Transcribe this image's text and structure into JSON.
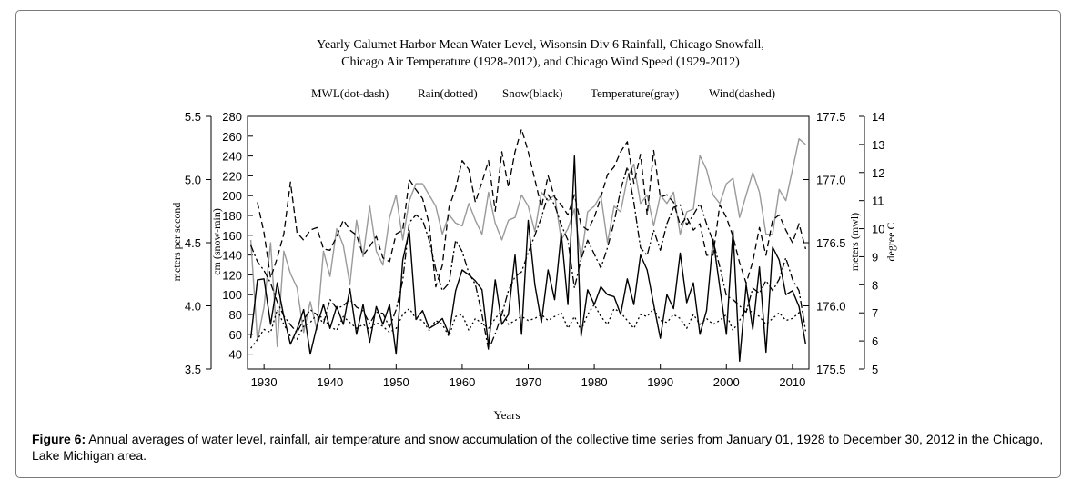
{
  "chart_data": {
    "type": "line",
    "title_line1": "Yearly Calumet Harbor Mean Water Level, Wisonsin Div 6 Rainfall, Chicago Snowfall,",
    "title_line2": "Chicago Air Temperature (1928-2012), and Chicago Wind Speed (1929-2012)",
    "legend": [
      "MWL(dot-dash)",
      "Rain(dotted)",
      "Snow(black)",
      "Temperature(gray)",
      "Wind(dashed)"
    ],
    "xlabel": "Years",
    "x_ticks": [
      "1930",
      "1940",
      "1950",
      "1960",
      "1970",
      "1980",
      "1990",
      "2000",
      "2010"
    ],
    "xlim": [
      1927.5,
      2012.5
    ],
    "axes": {
      "wind": {
        "label": "meters per second",
        "ticks": [
          "3.5",
          "4.0",
          "4.5",
          "5.0",
          "5.5"
        ],
        "lim": [
          3.5,
          5.5
        ]
      },
      "snow_rain": {
        "label": "cm (snow-rain)",
        "ticks": [
          "40",
          "60",
          "80",
          "100",
          "120",
          "140",
          "160",
          "180",
          "200",
          "220",
          "240",
          "260",
          "280"
        ],
        "lim": [
          25,
          280
        ]
      },
      "mwl": {
        "label": "meters (mwl)",
        "ticks": [
          "175.5",
          "176.0",
          "176.5",
          "177.0",
          "177.5"
        ],
        "lim": [
          175.5,
          177.5
        ]
      },
      "temp": {
        "label": "degree C",
        "ticks": [
          "5",
          "6",
          "7",
          "8",
          "9",
          "10",
          "11",
          "12",
          "13",
          "14"
        ],
        "lim": [
          5,
          14
        ]
      }
    },
    "series": [
      {
        "name": "MWL(dot-dash)",
        "axis": "mwl",
        "style": "dotdash",
        "color": "#000000",
        "start": 1928,
        "values": [
          176.48,
          176.35,
          176.28,
          176.18,
          176.03,
          175.92,
          175.85,
          175.79,
          175.89,
          175.97,
          175.93,
          175.86,
          176.05,
          175.98,
          176.0,
          176.05,
          175.99,
          175.96,
          175.86,
          175.95,
          175.94,
          175.83,
          175.97,
          176.2,
          176.66,
          176.72,
          176.68,
          176.52,
          176.29,
          176.12,
          176.18,
          176.52,
          176.43,
          176.26,
          176.17,
          175.93,
          175.65,
          175.78,
          175.93,
          176.12,
          176.23,
          176.27,
          176.42,
          176.56,
          176.7,
          176.88,
          176.8,
          176.64,
          176.52,
          176.14,
          176.37,
          176.52,
          176.41,
          176.3,
          176.46,
          176.66,
          176.92,
          177.1,
          176.82,
          176.46,
          176.4,
          176.6,
          176.44,
          176.65,
          176.78,
          176.8,
          176.64,
          176.72,
          176.81,
          176.65,
          176.51,
          176.31,
          176.08,
          176.05,
          176.0,
          175.95,
          176.14,
          176.1,
          176.2,
          176.12,
          176.21,
          176.38,
          176.21,
          176.12,
          175.8
        ]
      },
      {
        "name": "Rain(dotted)",
        "axis": "snow_rain",
        "style": "dotted",
        "color": "#000000",
        "start": 1928,
        "values": [
          46,
          55,
          65,
          62,
          85,
          70,
          58,
          55,
          68,
          72,
          80,
          76,
          68,
          64,
          78,
          72,
          66,
          70,
          65,
          72,
          68,
          62,
          66,
          80,
          86,
          76,
          74,
          64,
          74,
          70,
          58,
          78,
          80,
          64,
          76,
          71,
          66,
          76,
          84,
          70,
          74,
          78,
          74,
          76,
          80,
          74,
          78,
          82,
          66,
          78,
          64,
          80,
          90,
          78,
          70,
          86,
          82,
          74,
          66,
          80,
          78,
          86,
          74,
          72,
          80,
          76,
          66,
          80,
          70,
          76,
          70,
          74,
          80,
          64,
          74,
          86,
          82,
          78,
          70,
          76,
          82,
          74,
          76,
          82,
          80
        ]
      },
      {
        "name": "Snow(black)",
        "axis": "snow_rain",
        "style": "solid",
        "color": "#000000",
        "start": 1928,
        "values": [
          56,
          115,
          116,
          70,
          112,
          78,
          50,
          65,
          85,
          40,
          68,
          90,
          66,
          88,
          70,
          106,
          60,
          90,
          52,
          88,
          70,
          90,
          40,
          135,
          165,
          75,
          84,
          66,
          70,
          76,
          60,
          104,
          125,
          120,
          114,
          105,
          48,
          115,
          70,
          80,
          140,
          60,
          175,
          110,
          72,
          125,
          95,
          162,
          90,
          240,
          58,
          105,
          90,
          108,
          100,
          98,
          80,
          116,
          90,
          140,
          125,
          90,
          56,
          100,
          86,
          142,
          92,
          112,
          60,
          84,
          156,
          108,
          60,
          165,
          33,
          110,
          65,
          128,
          42,
          148,
          135,
          100,
          104,
          88,
          50
        ]
      },
      {
        "name": "Temperature(gray)",
        "axis": "temp",
        "style": "solid",
        "color": "#9a9a9a",
        "start": 1928,
        "values": [
          9.6,
          6.0,
          7.2,
          9.5,
          5.8,
          9.2,
          8.4,
          7.9,
          6.3,
          7.4,
          6.4,
          9.2,
          8.3,
          10.0,
          9.4,
          8.0,
          10.3,
          9.0,
          10.8,
          9.2,
          8.7,
          10.4,
          11.2,
          9.6,
          11.0,
          11.6,
          11.6,
          11.2,
          10.8,
          9.8,
          10.5,
          10.2,
          10.1,
          10.9,
          10.3,
          9.8,
          11.3,
          10.2,
          9.6,
          10.3,
          10.4,
          11.2,
          10.8,
          9.9,
          11.3,
          11.0,
          11.2,
          9.6,
          10.0,
          10.7,
          8.9,
          10.6,
          10.8,
          11.2,
          9.5,
          10.8,
          10.6,
          11.8,
          12.3,
          10.9,
          11.2,
          10.1,
          11.2,
          10.9,
          11.3,
          9.8,
          10.6,
          10.7,
          12.6,
          12.1,
          11.2,
          10.9,
          11.6,
          11.8,
          10.4,
          11.2,
          12.0,
          11.3,
          9.8,
          9.8,
          11.4,
          11.0,
          12.1,
          13.2,
          13.0
        ]
      },
      {
        "name": "Wind(dashed)",
        "axis": "wind",
        "style": "dashed",
        "color": "#000000",
        "start": 1929,
        "values": [
          4.82,
          4.58,
          4.22,
          4.38,
          4.57,
          4.98,
          4.58,
          4.52,
          4.6,
          4.62,
          4.45,
          4.44,
          4.55,
          4.68,
          4.6,
          4.56,
          4.4,
          4.47,
          4.55,
          4.38,
          4.35,
          4.57,
          4.6,
          5.0,
          4.92,
          4.85,
          4.65,
          4.15,
          4.32,
          4.78,
          4.93,
          5.15,
          5.08,
          4.82,
          4.98,
          5.15,
          4.75,
          5.22,
          4.94,
          5.22,
          5.4,
          5.22,
          5.0,
          4.78,
          5.03,
          4.86,
          4.8,
          4.72,
          4.88,
          4.64,
          4.6,
          4.7,
          4.86,
          5.04,
          5.1,
          5.22,
          5.3,
          4.97,
          5.2,
          4.72,
          5.23,
          4.86,
          4.88,
          4.82,
          4.64,
          4.7,
          4.6,
          4.65,
          4.4,
          4.4,
          4.8,
          4.7,
          4.55,
          4.34,
          4.18,
          4.35,
          4.62,
          4.4,
          4.68,
          4.72,
          4.6,
          4.5,
          4.65,
          4.45
        ]
      }
    ]
  },
  "caption": {
    "label": "Figure 6:",
    "text": " Annual averages of water level, rainfall, air temperature and snow accumulation of the collective time series from January 01, 1928 to December 30, 2012 in the Chicago, Lake Michigan area."
  }
}
